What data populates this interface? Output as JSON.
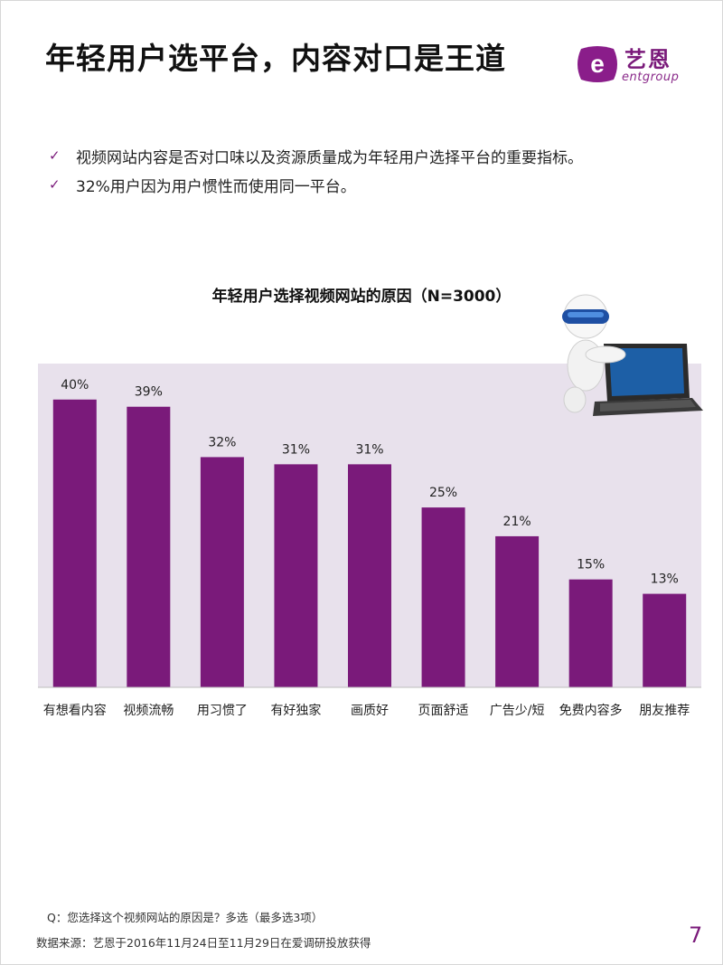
{
  "header": {
    "title": "年轻用户选平台，内容对口是王道",
    "logo_name": "艺恩",
    "logo_sub": "entgroup"
  },
  "bullets": [
    {
      "text": "视频网站内容是否对口味以及资源质量成为年轻用户选择平台的重要指标。"
    },
    {
      "text": "32%用户因为用户惯性而使用同一平台。"
    }
  ],
  "chart_data": {
    "type": "bar",
    "title": "年轻用户选择视频网站的原因（N=3000）",
    "categories": [
      "有想看内容",
      "视频流畅",
      "用习惯了",
      "有好独家",
      "画质好",
      "页面舒适",
      "广告少/短",
      "免费内容多",
      "朋友推荐"
    ],
    "values": [
      40,
      39,
      32,
      31,
      31,
      25,
      21,
      15,
      13
    ],
    "value_labels": [
      "40%",
      "39%",
      "32%",
      "31%",
      "31%",
      "25%",
      "21%",
      "15%",
      "13%"
    ],
    "ylim": [
      0,
      45
    ],
    "bar_color": "#7a1a7a",
    "plot_background": "#e8e1ec"
  },
  "footer": {
    "question": "Q：您选择这个视频网站的原因是？多选（最多选3项）",
    "source": "数据来源：艺恩于2016年11月24日至11月29日在爱调研投放获得",
    "page_number": "7"
  }
}
